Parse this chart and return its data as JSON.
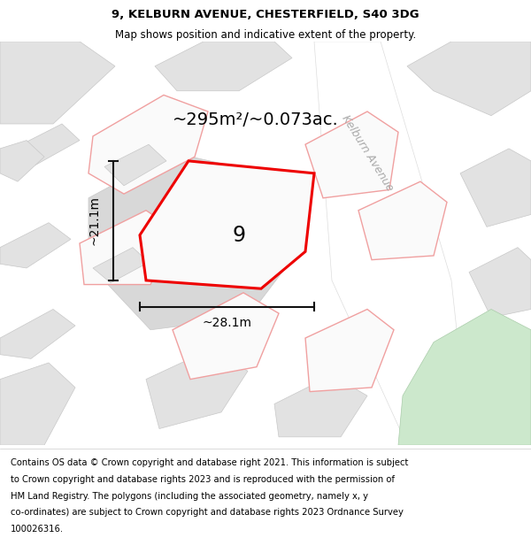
{
  "title_line1": "9, KELBURN AVENUE, CHESTERFIELD, S40 3DG",
  "title_line2": "Map shows position and indicative extent of the property.",
  "area_text": "~295m²/~0.073ac.",
  "label_number": "9",
  "dim_width": "~28.1m",
  "dim_height": "~21.1m",
  "street_label": "Kelburn Avenue",
  "footer_lines": [
    "Contains OS data © Crown copyright and database right 2021. This information is subject",
    "to Crown copyright and database rights 2023 and is reproduced with the permission of",
    "HM Land Registry. The polygons (including the associated geometry, namely x, y",
    "co-ordinates) are subject to Crown copyright and database rights 2023 Ordnance Survey",
    "100026316."
  ],
  "bg_color": "#efefef",
  "road_color": "#ffffff",
  "building_fill": "#e2e2e2",
  "building_stroke": "#c8c8c8",
  "block_fill": "#d8d8d8",
  "pink_stroke": "#f0a0a0",
  "pink_fill": "#fafafa",
  "green_fill": "#cce8cc",
  "green_stroke": "#aaccaa",
  "highlight_fill": "#fafafa",
  "highlight_stroke": "#ee0000",
  "dim_line_color": "#111111",
  "title_fontsize": 9.5,
  "subtitle_fontsize": 8.5,
  "area_fontsize": 14,
  "label_fontsize": 17,
  "dim_fontsize": 10,
  "street_fontsize": 9,
  "footer_fontsize": 7.2
}
